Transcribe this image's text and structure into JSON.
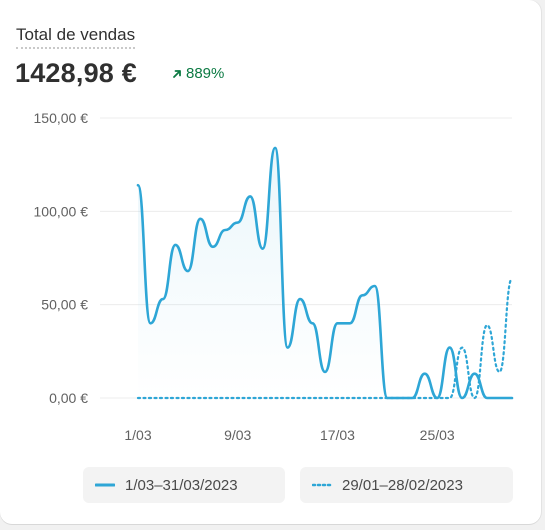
{
  "metric": {
    "title": "Total de vendas",
    "value": "1428,98 €",
    "change": "889%"
  },
  "colors": {
    "current": "#2ea6d6",
    "previous": "#2ea6d6",
    "change_positive": "#0c7a43",
    "grid": "#ececec"
  },
  "chart_data": {
    "type": "line",
    "title": "",
    "xlabel": "",
    "ylabel": "",
    "ylim": [
      0,
      150
    ],
    "y_ticks": [
      0,
      50,
      100,
      150
    ],
    "y_tick_labels": [
      "0,00 €",
      "50,00 €",
      "100,00 €",
      "150,00 €"
    ],
    "x_tick_days": [
      1,
      9,
      17,
      25
    ],
    "x_tick_labels": [
      "1/03",
      "9/03",
      "17/03",
      "25/03"
    ],
    "grid": true,
    "legend_position": "bottom",
    "series": [
      {
        "name": "1/03–31/03/2023",
        "style": "solid",
        "x": [
          1,
          2,
          3,
          4,
          5,
          6,
          7,
          8,
          9,
          10,
          11,
          12,
          13,
          14,
          15,
          16,
          17,
          18,
          19,
          20,
          21,
          22,
          23,
          24,
          25,
          26,
          27,
          28,
          29,
          30,
          31
        ],
        "values": [
          114,
          40,
          53,
          82,
          68,
          96,
          81,
          90,
          94,
          108,
          80,
          134,
          27,
          53,
          40,
          14,
          40,
          40,
          55,
          60,
          0,
          0,
          0,
          13,
          0,
          27,
          0,
          13,
          0,
          0,
          0
        ]
      },
      {
        "name": "29/01–28/02/2023",
        "style": "dotted",
        "x": [
          1,
          2,
          3,
          4,
          5,
          6,
          7,
          8,
          9,
          10,
          11,
          12,
          13,
          14,
          15,
          16,
          17,
          18,
          19,
          20,
          21,
          22,
          23,
          24,
          25,
          26,
          27,
          28,
          29,
          30,
          31
        ],
        "values": [
          0,
          0,
          0,
          0,
          0,
          0,
          0,
          0,
          0,
          0,
          0,
          0,
          0,
          0,
          0,
          0,
          0,
          0,
          0,
          0,
          0,
          0,
          0,
          0,
          0,
          0,
          27,
          0,
          39,
          14,
          64
        ]
      }
    ]
  }
}
